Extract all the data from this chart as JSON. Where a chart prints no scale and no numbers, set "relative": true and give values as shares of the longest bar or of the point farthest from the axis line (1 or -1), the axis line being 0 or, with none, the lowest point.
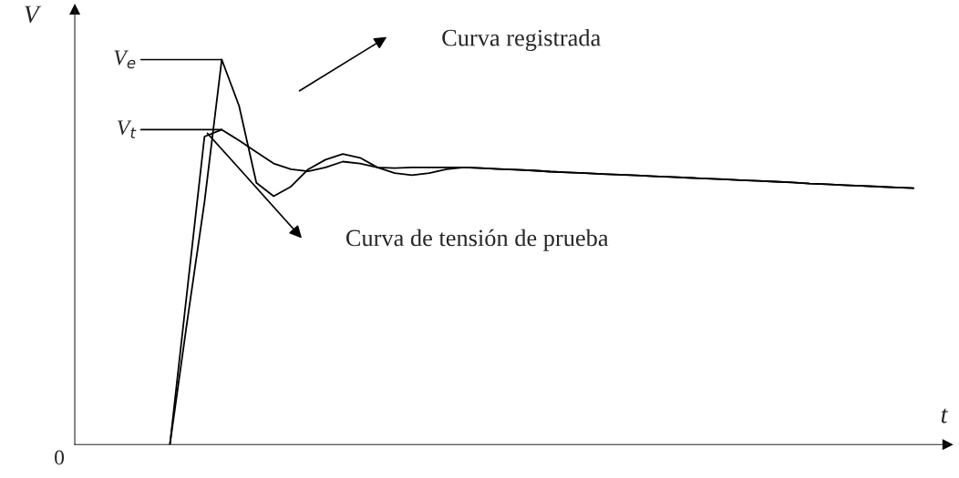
{
  "chart_data": {
    "type": "line",
    "relative": true,
    "xlabel": "t",
    "ylabel": "V",
    "grid": false,
    "marker": "none",
    "line_style": "solid",
    "categories": [
      null,
      null,
      null,
      null,
      null,
      null,
      null,
      null,
      null,
      null,
      null,
      null,
      null,
      null,
      null,
      null,
      null,
      null,
      null,
      null,
      null,
      null,
      null,
      null,
      null,
      null,
      null,
      null,
      null,
      null,
      null,
      null,
      null,
      null,
      null,
      null,
      null,
      null,
      null,
      null,
      null,
      null,
      null,
      null,
      null,
      null,
      null,
      null,
      null
    ],
    "series": [
      {
        "name": "Curva registrada",
        "color": "#000000",
        "values": [
          null,
          null,
          null,
          null,
          null,
          0,
          0.32,
          0.63,
          1,
          0.88,
          0.68,
          0.645,
          0.67,
          0.715,
          0.74,
          0.755,
          0.745,
          0.72,
          0.705,
          0.7,
          0.705,
          0.715,
          0.72,
          0.718,
          0.716,
          0.714,
          0.712,
          0.709,
          0.707,
          0.705,
          0.703,
          0.701,
          0.699,
          0.697,
          0.695,
          0.693,
          0.691,
          0.689,
          0.687,
          0.685,
          0.683,
          0.681,
          0.678,
          0.676,
          0.674,
          0.672,
          0.67,
          0.668,
          0.666
        ]
      },
      {
        "name": "Curva de tensión de prueba",
        "color": "#000000",
        "values": [
          null,
          null,
          null,
          null,
          null,
          0,
          0.4,
          0.8,
          0.818,
          0.79,
          0.76,
          0.73,
          0.715,
          0.71,
          0.72,
          0.735,
          0.73,
          0.72,
          0.718,
          0.72,
          0.72,
          0.72,
          0.72,
          0.718,
          0.716,
          0.714,
          0.712,
          0.709,
          0.707,
          0.705,
          0.703,
          0.701,
          0.699,
          0.697,
          0.695,
          0.693,
          0.691,
          0.689,
          0.687,
          0.685,
          0.683,
          0.681,
          0.678,
          0.676,
          0.674,
          0.672,
          0.67,
          0.668,
          0.666
        ]
      }
    ],
    "legend": "top",
    "ref_lines": [
      {
        "axis": "y",
        "value": 1,
        "label": "V$_{e}$"
      },
      {
        "axis": "y",
        "value": 0.818,
        "label": "V$_{t}$"
      }
    ],
    "annotations": [
      "0"
    ]
  }
}
